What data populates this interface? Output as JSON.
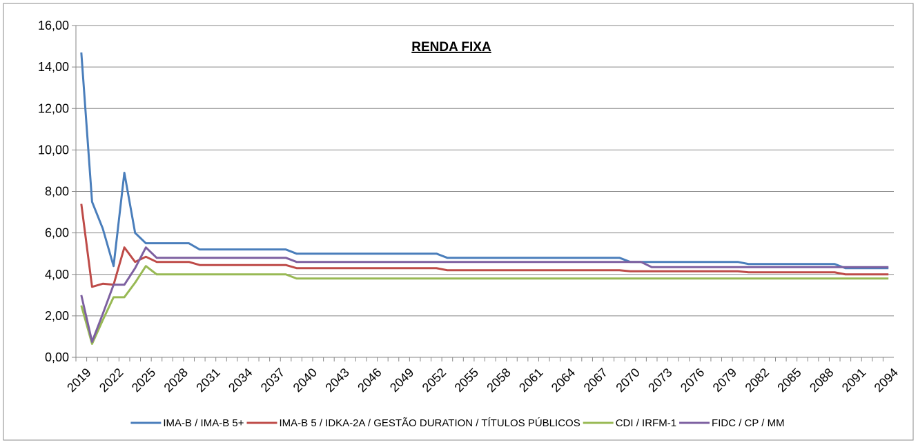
{
  "chart_data": {
    "type": "line",
    "title": "RENDA FIXA",
    "categories": [
      "2019",
      null,
      null,
      "2022",
      null,
      null,
      "2025",
      null,
      null,
      "2028",
      null,
      null,
      "2031",
      null,
      null,
      "2034",
      null,
      null,
      "2037",
      null,
      null,
      "2040",
      null,
      null,
      "2043",
      null,
      null,
      "2046",
      null,
      null,
      "2049",
      null,
      null,
      "2052",
      null,
      null,
      "2055",
      null,
      null,
      "2058",
      null,
      null,
      "2061",
      null,
      null,
      "2064",
      null,
      null,
      "2067",
      null,
      null,
      "2070",
      null,
      null,
      "2073",
      null,
      null,
      "2076",
      null,
      null,
      "2079",
      null,
      null,
      "2082",
      null,
      null,
      "2085",
      null,
      null,
      "2088",
      null,
      null,
      "2091",
      null,
      null,
      "2094"
    ],
    "series": [
      {
        "name": "IMA-B / IMA-B 5+",
        "color": "#4a7ebb",
        "values": [
          14.7,
          7.5,
          6.2,
          4.4,
          8.9,
          6.0,
          5.5,
          5.5,
          5.5,
          5.5,
          5.5,
          5.2,
          5.2,
          5.2,
          5.2,
          5.2,
          5.2,
          5.2,
          5.2,
          5.2,
          5.0,
          5.0,
          5.0,
          5.0,
          5.0,
          5.0,
          5.0,
          5.0,
          5.0,
          5.0,
          5.0,
          5.0,
          5.0,
          5.0,
          4.8,
          4.8,
          4.8,
          4.8,
          4.8,
          4.8,
          4.8,
          4.8,
          4.8,
          4.8,
          4.8,
          4.8,
          4.8,
          4.8,
          4.8,
          4.8,
          4.8,
          4.6,
          4.6,
          4.6,
          4.6,
          4.6,
          4.6,
          4.6,
          4.6,
          4.6,
          4.6,
          4.6,
          4.5,
          4.5,
          4.5,
          4.5,
          4.5,
          4.5,
          4.5,
          4.5,
          4.5,
          4.3,
          4.3,
          4.3,
          4.3,
          4.3
        ]
      },
      {
        "name": "IMA-B 5 / IDKA-2A / GESTÃO DURATION / TÍTULOS PÚBLICOS",
        "color": "#be4b48",
        "values": [
          7.4,
          3.4,
          3.55,
          3.5,
          5.3,
          4.6,
          4.85,
          4.6,
          4.6,
          4.6,
          4.6,
          4.45,
          4.45,
          4.45,
          4.45,
          4.45,
          4.45,
          4.45,
          4.45,
          4.45,
          4.3,
          4.3,
          4.3,
          4.3,
          4.3,
          4.3,
          4.3,
          4.3,
          4.3,
          4.3,
          4.3,
          4.3,
          4.3,
          4.3,
          4.2,
          4.2,
          4.2,
          4.2,
          4.2,
          4.2,
          4.2,
          4.2,
          4.2,
          4.2,
          4.2,
          4.2,
          4.2,
          4.2,
          4.2,
          4.2,
          4.2,
          4.15,
          4.15,
          4.15,
          4.15,
          4.15,
          4.15,
          4.15,
          4.15,
          4.15,
          4.15,
          4.15,
          4.1,
          4.1,
          4.1,
          4.1,
          4.1,
          4.1,
          4.1,
          4.1,
          4.1,
          4.0,
          4.0,
          4.0,
          4.0,
          4.0
        ]
      },
      {
        "name": "CDI / IRFM-1",
        "color": "#98b954",
        "values": [
          2.5,
          0.65,
          1.8,
          2.9,
          2.9,
          3.6,
          4.4,
          4.0,
          4.0,
          4.0,
          4.0,
          4.0,
          4.0,
          4.0,
          4.0,
          4.0,
          4.0,
          4.0,
          4.0,
          4.0,
          3.8,
          3.8,
          3.8,
          3.8,
          3.8,
          3.8,
          3.8,
          3.8,
          3.8,
          3.8,
          3.8,
          3.8,
          3.8,
          3.8,
          3.8,
          3.8,
          3.8,
          3.8,
          3.8,
          3.8,
          3.8,
          3.8,
          3.8,
          3.8,
          3.8,
          3.8,
          3.8,
          3.8,
          3.8,
          3.8,
          3.8,
          3.8,
          3.8,
          3.8,
          3.8,
          3.8,
          3.8,
          3.8,
          3.8,
          3.8,
          3.8,
          3.8,
          3.8,
          3.8,
          3.8,
          3.8,
          3.8,
          3.8,
          3.8,
          3.8,
          3.8,
          3.8,
          3.8,
          3.8,
          3.8,
          3.8
        ]
      },
      {
        "name": "FIDC / CP / MM",
        "color": "#7d60a0",
        "values": [
          3.0,
          0.75,
          2.1,
          3.5,
          3.5,
          4.3,
          5.3,
          4.8,
          4.8,
          4.8,
          4.8,
          4.8,
          4.8,
          4.8,
          4.8,
          4.8,
          4.8,
          4.8,
          4.8,
          4.8,
          4.6,
          4.6,
          4.6,
          4.6,
          4.6,
          4.6,
          4.6,
          4.6,
          4.6,
          4.6,
          4.6,
          4.6,
          4.6,
          4.6,
          4.6,
          4.6,
          4.6,
          4.6,
          4.6,
          4.6,
          4.6,
          4.6,
          4.6,
          4.6,
          4.6,
          4.6,
          4.6,
          4.6,
          4.6,
          4.6,
          4.6,
          4.6,
          4.6,
          4.35,
          4.35,
          4.35,
          4.35,
          4.35,
          4.35,
          4.35,
          4.35,
          4.35,
          4.35,
          4.35,
          4.35,
          4.35,
          4.35,
          4.35,
          4.35,
          4.35,
          4.35,
          4.35,
          4.35,
          4.35,
          4.35,
          4.35
        ]
      }
    ],
    "ylim": [
      0,
      16
    ],
    "yticks": [
      {
        "value": 0,
        "label": "0,00"
      },
      {
        "value": 2,
        "label": "2,00"
      },
      {
        "value": 4,
        "label": "4,00"
      },
      {
        "value": 6,
        "label": "6,00"
      },
      {
        "value": 8,
        "label": "8,00"
      },
      {
        "value": 10,
        "label": "10,00"
      },
      {
        "value": 12,
        "label": "12,00"
      },
      {
        "value": 14,
        "label": "14,00"
      },
      {
        "value": 16,
        "label": "16,00"
      }
    ],
    "grid": true,
    "legend": "bottom"
  }
}
